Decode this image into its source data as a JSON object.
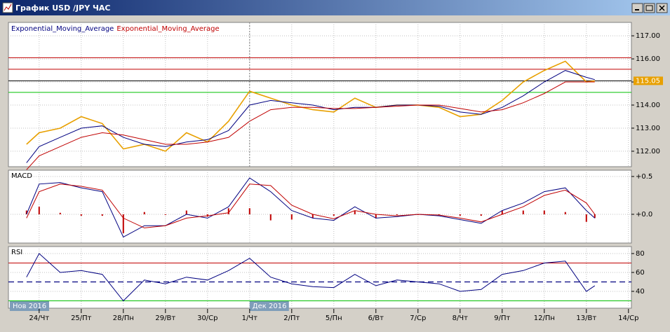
{
  "window": {
    "title": "График USD /JPY  ЧАС"
  },
  "chart_data": {
    "type": "line",
    "grid": true,
    "x": [
      -0.3,
      0,
      0.5,
      1,
      1.5,
      2,
      2.5,
      3,
      3.5,
      4,
      4.5,
      5,
      5.5,
      6,
      6.5,
      7,
      7.5,
      8,
      8.5,
      9,
      9.5,
      10,
      10.5,
      11,
      11.5,
      12,
      12.5,
      13,
      13.2
    ],
    "xlim": [
      -0.73,
      14.07
    ],
    "xticks": [
      {
        "value": 0,
        "label": "24/Чт"
      },
      {
        "value": 1,
        "label": "25/Пт"
      },
      {
        "value": 2,
        "label": "28/Пн"
      },
      {
        "value": 3,
        "label": "29/Вт"
      },
      {
        "value": 4,
        "label": "30/Ср"
      },
      {
        "value": 5,
        "label": "1/Чт"
      },
      {
        "value": 6,
        "label": "2/Пт"
      },
      {
        "value": 7,
        "label": "5/Пн"
      },
      {
        "value": 8,
        "label": "6/Вт"
      },
      {
        "value": 9,
        "label": "7/Ср"
      },
      {
        "value": 10,
        "label": "8/Чт"
      },
      {
        "value": 11,
        "label": "9/Пт"
      },
      {
        "value": 12,
        "label": "12/Пн"
      },
      {
        "value": 13,
        "label": "13/Вт"
      },
      {
        "value": 14,
        "label": "14/Ср"
      }
    ],
    "months": [
      {
        "value": -0.73,
        "label": "Нов 2016"
      },
      {
        "value": 5,
        "label": "Дек 2016"
      }
    ],
    "panels": [
      {
        "ylim": [
          111.33,
          117.58
        ],
        "yticks": [
          {
            "value": 112,
            "label": "112.00"
          },
          {
            "value": 113,
            "label": "113.00"
          },
          {
            "value": 114,
            "label": "114.00"
          },
          {
            "value": 115,
            "label": "115.00"
          },
          {
            "value": 116,
            "label": "116.00"
          },
          {
            "value": 117,
            "label": "117.00"
          }
        ],
        "current": 115.05,
        "levels": [
          {
            "value": 116.05,
            "color": "#c00000"
          },
          {
            "value": 115.55,
            "color": "#c00000"
          },
          {
            "value": 115.05,
            "color": "#000000"
          },
          {
            "value": 114.55,
            "color": "#00c000"
          }
        ],
        "series": [
          {
            "color": "#e8a000",
            "values": [
              112.3,
              112.8,
              113.0,
              113.5,
              113.2,
              112.1,
              112.3,
              112.0,
              112.8,
              112.4,
              113.3,
              114.6,
              114.3,
              114.0,
              113.8,
              113.7,
              114.3,
              113.9,
              114.0,
              114.0,
              113.9,
              113.5,
              113.6,
              114.2,
              115.0,
              115.5,
              115.9,
              115.0,
              115.05
            ]
          },
          {
            "name": "Exponential_Moving_Average",
            "color": "#000080",
            "values": [
              111.5,
              112.2,
              112.6,
              113.0,
              113.1,
              112.6,
              112.3,
              112.2,
              112.4,
              112.5,
              112.9,
              114.0,
              114.2,
              114.1,
              114.0,
              113.8,
              113.9,
              113.9,
              114.0,
              114.0,
              113.95,
              113.7,
              113.6,
              113.9,
              114.4,
              115.0,
              115.5,
              115.2,
              115.1
            ]
          },
          {
            "name": "Exponential_Moving_Average",
            "color": "#c00000",
            "values": [
              111.2,
              111.8,
              112.2,
              112.6,
              112.8,
              112.7,
              112.5,
              112.3,
              112.3,
              112.4,
              112.6,
              113.3,
              113.8,
              113.9,
              113.9,
              113.85,
              113.85,
              113.9,
              113.95,
              114.0,
              114.0,
              113.85,
              113.7,
              113.8,
              114.1,
              114.5,
              115.0,
              115.0,
              115.0
            ]
          }
        ]
      },
      {
        "title": "MACD",
        "ylim": [
          -0.38,
          0.583
        ],
        "yticks": [
          {
            "value": 0,
            "label": "+0.0"
          },
          {
            "value": 0.5,
            "label": "+0.5"
          }
        ],
        "histogram": {
          "color": "#c00000",
          "values": [
            0.05,
            0.1,
            0.02,
            -0.02,
            -0.02,
            -0.25,
            0.03,
            0.0,
            0.05,
            -0.03,
            0.08,
            0.08,
            -0.08,
            -0.07,
            -0.05,
            -0.02,
            0.05,
            -0.05,
            -0.01,
            0.0,
            -0.01,
            -0.02,
            -0.02,
            0.05,
            0.05,
            0.05,
            0.03,
            -0.1,
            -0.05
          ]
        },
        "series": [
          {
            "color": "#000080",
            "values": [
              0.0,
              0.4,
              0.42,
              0.35,
              0.3,
              -0.3,
              -0.15,
              -0.15,
              0.0,
              -0.05,
              0.1,
              0.48,
              0.3,
              0.05,
              -0.05,
              -0.08,
              0.1,
              -0.05,
              -0.03,
              0.0,
              -0.02,
              -0.07,
              -0.12,
              0.05,
              0.15,
              0.3,
              0.35,
              0.05,
              -0.05
            ]
          },
          {
            "color": "#c00000",
            "values": [
              -0.05,
              0.3,
              0.4,
              0.37,
              0.32,
              -0.05,
              -0.18,
              -0.15,
              -0.05,
              -0.02,
              0.02,
              0.4,
              0.38,
              0.12,
              0.0,
              -0.06,
              0.05,
              0.0,
              -0.02,
              0.0,
              -0.01,
              -0.05,
              -0.1,
              0.0,
              0.1,
              0.25,
              0.32,
              0.15,
              0.0
            ]
          }
        ]
      },
      {
        "title": "RSI",
        "ylim": [
          22.2,
          87.4
        ],
        "yticks": [
          40,
          60,
          80
        ],
        "levels": [
          {
            "value": 70,
            "color": "#c00000"
          },
          {
            "value": 50,
            "color": "#000080",
            "dash": true
          },
          {
            "value": 30,
            "color": "#00c000"
          }
        ],
        "series": [
          {
            "color": "#000080",
            "values": [
              55,
              80,
              60,
              62,
              58,
              30,
              52,
              48,
              55,
              52,
              62,
              75,
              55,
              48,
              45,
              44,
              58,
              46,
              52,
              50,
              48,
              40,
              42,
              58,
              62,
              70,
              72,
              40,
              46
            ]
          }
        ]
      }
    ]
  }
}
